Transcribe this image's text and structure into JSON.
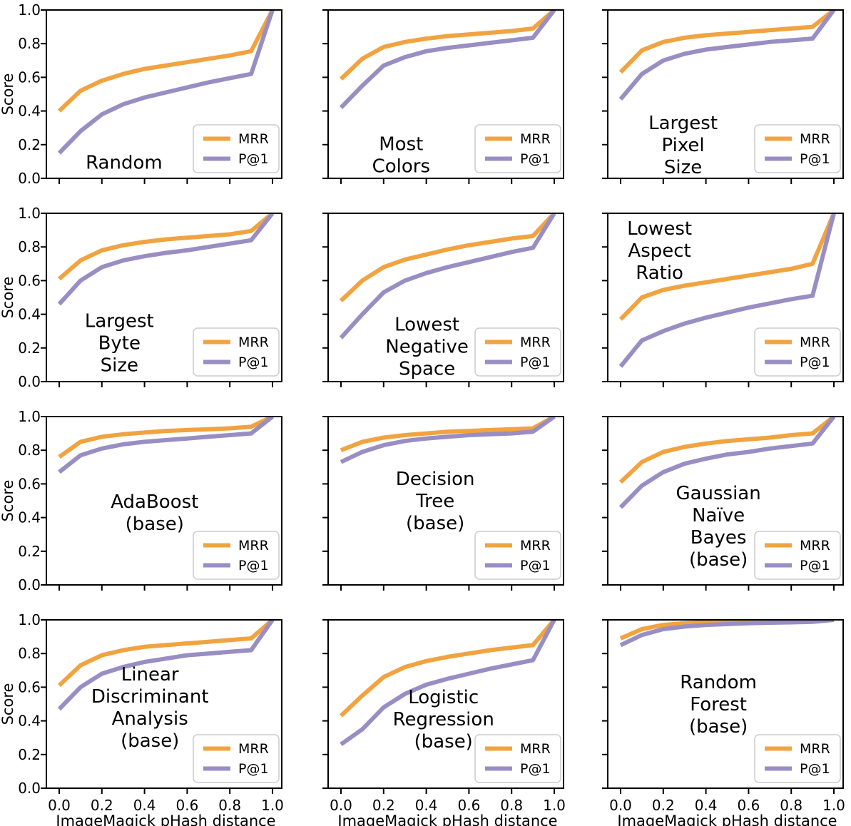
{
  "figure": {
    "ylabel": "Score",
    "xlabel": "ImageMagick pHash distance",
    "x_tick_labels": [
      "0.0",
      "0.2",
      "0.4",
      "0.6",
      "0.8",
      "1.0"
    ],
    "y_tick_labels": [
      "0.0",
      "0.2",
      "0.4",
      "0.6",
      "0.8",
      "1.0"
    ],
    "colors": {
      "MRR": "#f1a340",
      "P@1": "#998ec3",
      "axes": "#000000",
      "legend_border": "#cccccc",
      "background": "#ffffff"
    },
    "legend": {
      "entries": [
        "MRR",
        "P@1"
      ],
      "position": "lower right"
    },
    "grid": "off"
  },
  "chart_data": [
    {
      "type": "line",
      "title": "Random",
      "title_lines": [
        "Random"
      ],
      "title_pos": {
        "x": 0.33,
        "y": 0.095
      },
      "xlim": [
        0,
        1
      ],
      "ylim": [
        0,
        1
      ],
      "legend_position": "lower right",
      "x": [
        0,
        0.1,
        0.2,
        0.3,
        0.4,
        0.5,
        0.6,
        0.7,
        0.8,
        0.9,
        1.0
      ],
      "series": [
        {
          "name": "MRR",
          "values": [
            0.4,
            0.52,
            0.58,
            0.62,
            0.65,
            0.67,
            0.69,
            0.71,
            0.73,
            0.755,
            1.0
          ]
        },
        {
          "name": "P@1",
          "values": [
            0.15,
            0.28,
            0.38,
            0.44,
            0.48,
            0.51,
            0.54,
            0.57,
            0.595,
            0.62,
            1.0
          ]
        }
      ]
    },
    {
      "type": "line",
      "title": "Most Colors",
      "title_lines": [
        "Most",
        "Colors"
      ],
      "title_pos": {
        "x": 0.31,
        "y": 0.14
      },
      "xlim": [
        0,
        1
      ],
      "ylim": [
        0,
        1
      ],
      "legend_position": "lower right",
      "x": [
        0,
        0.1,
        0.2,
        0.3,
        0.4,
        0.5,
        0.6,
        0.7,
        0.8,
        0.9,
        1.0
      ],
      "series": [
        {
          "name": "MRR",
          "values": [
            0.59,
            0.71,
            0.78,
            0.81,
            0.83,
            0.845,
            0.855,
            0.865,
            0.875,
            0.89,
            1.0
          ]
        },
        {
          "name": "P@1",
          "values": [
            0.42,
            0.55,
            0.67,
            0.72,
            0.755,
            0.775,
            0.79,
            0.805,
            0.82,
            0.835,
            1.0
          ]
        }
      ]
    },
    {
      "type": "line",
      "title": "Largest Pixel Size",
      "title_lines": [
        "Largest",
        "Pixel",
        "Size"
      ],
      "title_pos": {
        "x": 0.32,
        "y": 0.2
      },
      "xlim": [
        0,
        1
      ],
      "ylim": [
        0,
        1
      ],
      "legend_position": "lower right",
      "x": [
        0,
        0.1,
        0.2,
        0.3,
        0.4,
        0.5,
        0.6,
        0.7,
        0.8,
        0.9,
        1.0
      ],
      "series": [
        {
          "name": "MRR",
          "values": [
            0.63,
            0.76,
            0.81,
            0.835,
            0.85,
            0.86,
            0.87,
            0.88,
            0.89,
            0.9,
            1.0
          ]
        },
        {
          "name": "P@1",
          "values": [
            0.47,
            0.62,
            0.7,
            0.74,
            0.765,
            0.78,
            0.795,
            0.81,
            0.82,
            0.83,
            1.0
          ]
        }
      ]
    },
    {
      "type": "line",
      "title": "Largest Byte Size",
      "title_lines": [
        "Largest",
        "Byte",
        "Size"
      ],
      "title_pos": {
        "x": 0.31,
        "y": 0.23
      },
      "xlim": [
        0,
        1
      ],
      "ylim": [
        0,
        1
      ],
      "legend_position": "lower right",
      "x": [
        0,
        0.1,
        0.2,
        0.3,
        0.4,
        0.5,
        0.6,
        0.7,
        0.8,
        0.9,
        1.0
      ],
      "series": [
        {
          "name": "MRR",
          "values": [
            0.61,
            0.72,
            0.78,
            0.81,
            0.83,
            0.845,
            0.855,
            0.865,
            0.875,
            0.895,
            1.0
          ]
        },
        {
          "name": "P@1",
          "values": [
            0.46,
            0.6,
            0.68,
            0.72,
            0.745,
            0.765,
            0.78,
            0.8,
            0.82,
            0.84,
            1.0
          ]
        }
      ]
    },
    {
      "type": "line",
      "title": "Lowest Negative Space",
      "title_lines": [
        "Lowest",
        "Negative",
        "Space"
      ],
      "title_pos": {
        "x": 0.42,
        "y": 0.21
      },
      "xlim": [
        0,
        1
      ],
      "ylim": [
        0,
        1
      ],
      "legend_position": "lower right",
      "x": [
        0,
        0.1,
        0.2,
        0.3,
        0.4,
        0.5,
        0.6,
        0.7,
        0.8,
        0.9,
        1.0
      ],
      "series": [
        {
          "name": "MRR",
          "values": [
            0.48,
            0.6,
            0.68,
            0.725,
            0.755,
            0.785,
            0.81,
            0.83,
            0.85,
            0.865,
            1.0
          ]
        },
        {
          "name": "P@1",
          "values": [
            0.26,
            0.4,
            0.53,
            0.6,
            0.645,
            0.68,
            0.71,
            0.74,
            0.77,
            0.795,
            1.0
          ]
        }
      ]
    },
    {
      "type": "line",
      "title": "Lowest Aspect Ratio",
      "title_lines": [
        "Lowest",
        "Aspect",
        "Ratio"
      ],
      "title_pos": {
        "x": 0.22,
        "y": 0.78
      },
      "xlim": [
        0,
        1
      ],
      "ylim": [
        0,
        1
      ],
      "legend_position": "lower right",
      "x": [
        0,
        0.1,
        0.2,
        0.3,
        0.4,
        0.5,
        0.6,
        0.7,
        0.8,
        0.9,
        1.0
      ],
      "series": [
        {
          "name": "MRR",
          "values": [
            0.37,
            0.5,
            0.545,
            0.57,
            0.59,
            0.61,
            0.63,
            0.65,
            0.67,
            0.7,
            1.0
          ]
        },
        {
          "name": "P@1",
          "values": [
            0.09,
            0.245,
            0.3,
            0.345,
            0.38,
            0.41,
            0.44,
            0.465,
            0.49,
            0.51,
            1.0
          ]
        }
      ]
    },
    {
      "type": "line",
      "title": "AdaBoost (base)",
      "title_lines": [
        "AdaBoost",
        "(base)"
      ],
      "title_pos": {
        "x": 0.46,
        "y": 0.43
      },
      "xlim": [
        0,
        1
      ],
      "ylim": [
        0,
        1
      ],
      "legend_position": "lower right",
      "x": [
        0,
        0.1,
        0.2,
        0.3,
        0.4,
        0.5,
        0.6,
        0.7,
        0.8,
        0.9,
        1.0
      ],
      "series": [
        {
          "name": "MRR",
          "values": [
            0.76,
            0.85,
            0.88,
            0.895,
            0.905,
            0.915,
            0.92,
            0.925,
            0.93,
            0.94,
            1.0
          ]
        },
        {
          "name": "P@1",
          "values": [
            0.67,
            0.77,
            0.81,
            0.835,
            0.85,
            0.86,
            0.87,
            0.88,
            0.89,
            0.9,
            1.0
          ]
        }
      ]
    },
    {
      "type": "line",
      "title": "Decision Tree (base)",
      "title_lines": [
        "Decision",
        "Tree",
        "(base)"
      ],
      "title_pos": {
        "x": 0.455,
        "y": 0.5
      },
      "xlim": [
        0,
        1
      ],
      "ylim": [
        0,
        1
      ],
      "legend_position": "lower right",
      "x": [
        0,
        0.1,
        0.2,
        0.3,
        0.4,
        0.5,
        0.6,
        0.7,
        0.8,
        0.9,
        1.0
      ],
      "series": [
        {
          "name": "MRR",
          "values": [
            0.8,
            0.85,
            0.875,
            0.89,
            0.9,
            0.91,
            0.915,
            0.92,
            0.925,
            0.93,
            1.0
          ]
        },
        {
          "name": "P@1",
          "values": [
            0.73,
            0.79,
            0.83,
            0.855,
            0.87,
            0.88,
            0.89,
            0.895,
            0.9,
            0.91,
            1.0
          ]
        }
      ]
    },
    {
      "type": "line",
      "title": "Gaussian Naïve Bayes (base)",
      "title_lines": [
        "Gaussian",
        "Naïve",
        "Bayes",
        "(base)"
      ],
      "title_pos": {
        "x": 0.47,
        "y": 0.35
      },
      "xlim": [
        0,
        1
      ],
      "ylim": [
        0,
        1
      ],
      "legend_position": "lower right",
      "x": [
        0,
        0.1,
        0.2,
        0.3,
        0.4,
        0.5,
        0.6,
        0.7,
        0.8,
        0.9,
        1.0
      ],
      "series": [
        {
          "name": "MRR",
          "values": [
            0.61,
            0.73,
            0.79,
            0.82,
            0.84,
            0.855,
            0.865,
            0.875,
            0.89,
            0.9,
            1.0
          ]
        },
        {
          "name": "P@1",
          "values": [
            0.46,
            0.59,
            0.67,
            0.72,
            0.75,
            0.775,
            0.79,
            0.81,
            0.825,
            0.84,
            1.0
          ]
        }
      ]
    },
    {
      "type": "line",
      "title": "Linear Discriminant Analysis (base)",
      "title_lines": [
        "Linear",
        "Discriminant",
        "Analysis",
        "(base)"
      ],
      "title_pos": {
        "x": 0.44,
        "y": 0.48
      },
      "xlim": [
        0,
        1
      ],
      "ylim": [
        0,
        1
      ],
      "legend_position": "lower right",
      "x": [
        0,
        0.1,
        0.2,
        0.3,
        0.4,
        0.5,
        0.6,
        0.7,
        0.8,
        0.9,
        1.0
      ],
      "series": [
        {
          "name": "MRR",
          "values": [
            0.61,
            0.73,
            0.79,
            0.82,
            0.84,
            0.85,
            0.86,
            0.87,
            0.88,
            0.89,
            1.0
          ]
        },
        {
          "name": "P@1",
          "values": [
            0.47,
            0.6,
            0.68,
            0.72,
            0.75,
            0.77,
            0.79,
            0.8,
            0.81,
            0.82,
            1.0
          ]
        }
      ]
    },
    {
      "type": "line",
      "title": "Logistic Regression (base)",
      "title_lines": [
        "Logistic",
        "Regression",
        "(base)"
      ],
      "title_pos": {
        "x": 0.49,
        "y": 0.41
      },
      "xlim": [
        0,
        1
      ],
      "ylim": [
        0,
        1
      ],
      "legend_position": "lower right",
      "x": [
        0,
        0.1,
        0.2,
        0.3,
        0.4,
        0.5,
        0.6,
        0.7,
        0.8,
        0.9,
        1.0
      ],
      "series": [
        {
          "name": "MRR",
          "values": [
            0.43,
            0.55,
            0.66,
            0.72,
            0.755,
            0.78,
            0.8,
            0.82,
            0.835,
            0.85,
            1.0
          ]
        },
        {
          "name": "P@1",
          "values": [
            0.26,
            0.35,
            0.48,
            0.56,
            0.615,
            0.65,
            0.68,
            0.71,
            0.735,
            0.76,
            1.0
          ]
        }
      ]
    },
    {
      "type": "line",
      "title": "Random Forest (base)",
      "title_lines": [
        "Random",
        "Forest",
        "(base)"
      ],
      "title_pos": {
        "x": 0.47,
        "y": 0.5
      },
      "xlim": [
        0,
        1
      ],
      "ylim": [
        0,
        1
      ],
      "legend_position": "lower right",
      "x": [
        0,
        0.1,
        0.2,
        0.3,
        0.4,
        0.5,
        0.6,
        0.7,
        0.8,
        0.9,
        1.0
      ],
      "series": [
        {
          "name": "MRR",
          "values": [
            0.89,
            0.945,
            0.97,
            0.98,
            0.985,
            0.99,
            0.992,
            0.994,
            0.995,
            0.996,
            1.0
          ]
        },
        {
          "name": "P@1",
          "values": [
            0.85,
            0.91,
            0.945,
            0.96,
            0.97,
            0.975,
            0.98,
            0.983,
            0.985,
            0.988,
            1.0
          ]
        }
      ]
    }
  ]
}
